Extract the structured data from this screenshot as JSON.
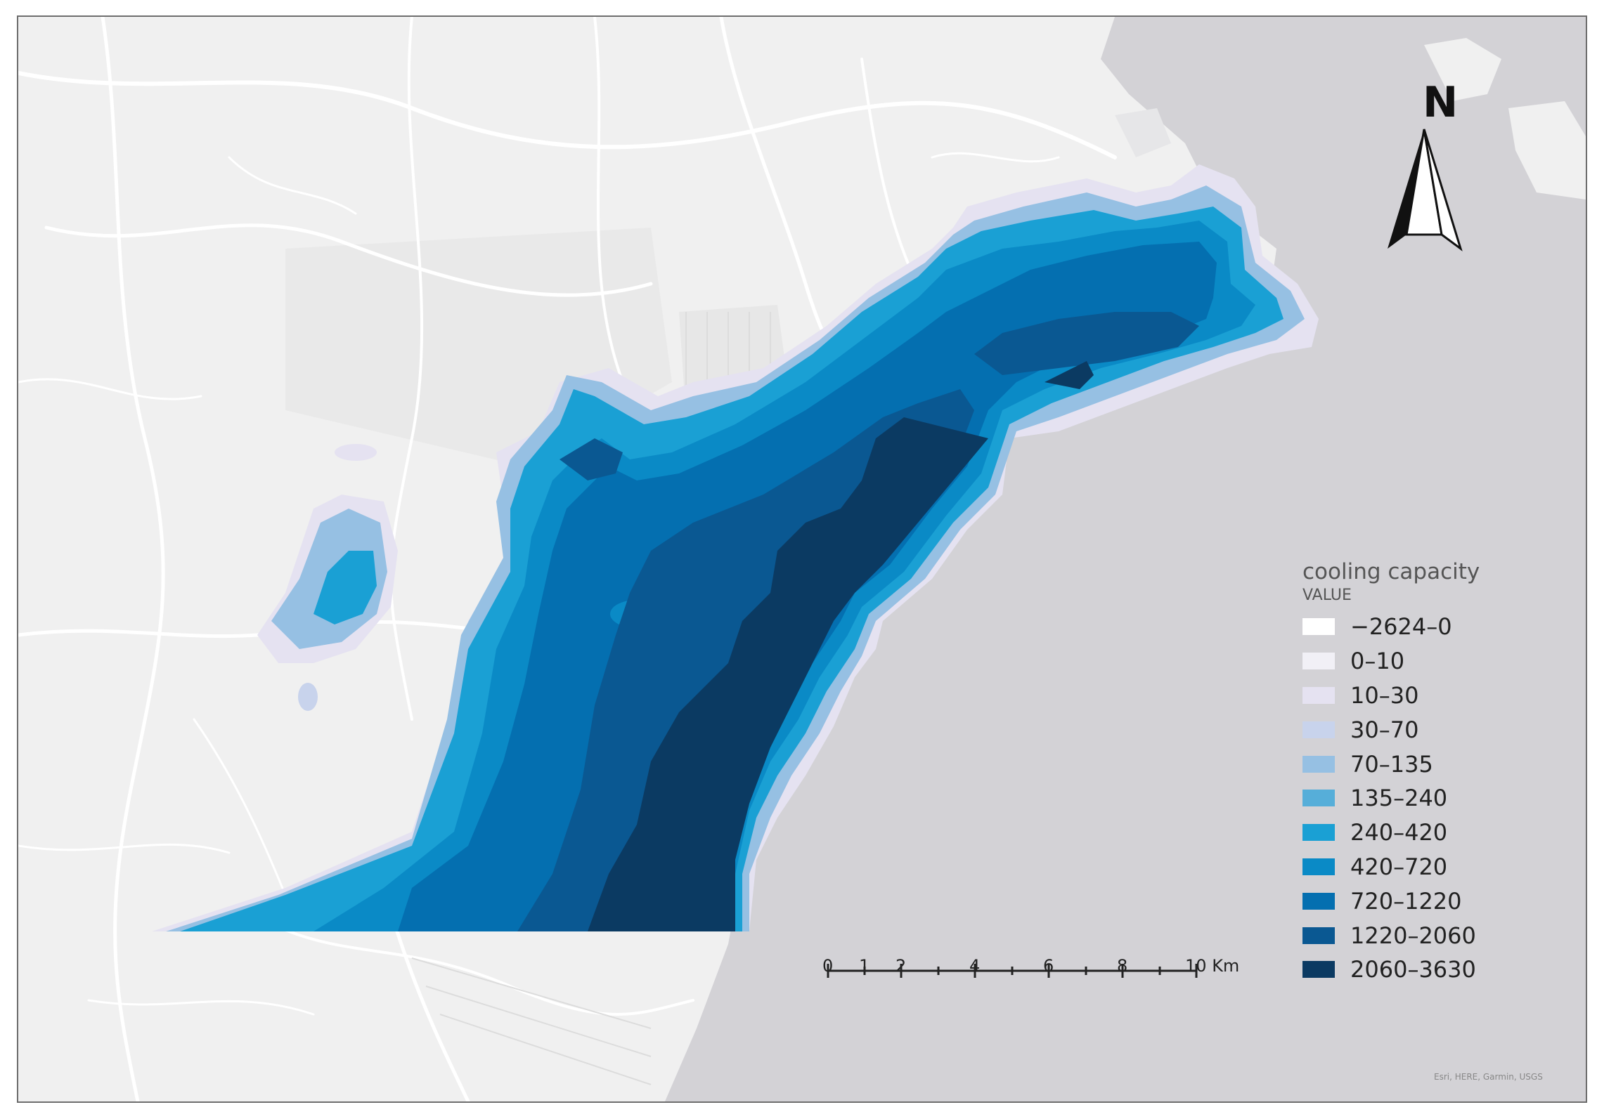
{
  "map": {
    "title": "",
    "sea_color": "#d3d2d6",
    "land_color": "#f0f0f0",
    "road_color": "#ffffff"
  },
  "north_arrow": {
    "label": "N"
  },
  "legend": {
    "title": "cooling capacity",
    "subtitle": "VALUE",
    "classes": [
      {
        "label": "−2624–0",
        "color": "#ffffff"
      },
      {
        "label": "0–10",
        "color": "#f1f0f6"
      },
      {
        "label": "10–30",
        "color": "#e5e2f1"
      },
      {
        "label": "30–70",
        "color": "#c8d3ec"
      },
      {
        "label": "70–135",
        "color": "#96c0e3"
      },
      {
        "label": "135–240",
        "color": "#56aed9"
      },
      {
        "label": "240–420",
        "color": "#1aa0d4"
      },
      {
        "label": "420–720",
        "color": "#0a8ac6"
      },
      {
        "label": "720–1220",
        "color": "#046fb0"
      },
      {
        "label": "1220–2060",
        "color": "#0a5892"
      },
      {
        "label": "2060–3630",
        "color": "#0b3a62"
      }
    ]
  },
  "scale_bar": {
    "ticks": [
      "0",
      "1",
      "2",
      "4",
      "6",
      "8",
      "10"
    ],
    "unit": "Km"
  },
  "attribution": "Esri, HERE, Garmin, USGS"
}
